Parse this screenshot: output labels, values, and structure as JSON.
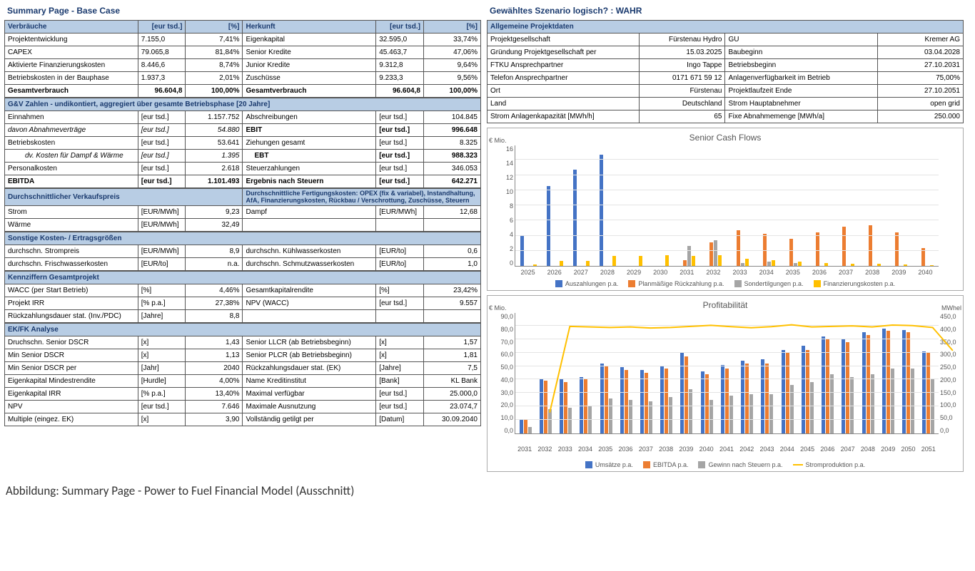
{
  "title_left": "Summary Page - Base Case",
  "title_right": "Gewähltes Szenario logisch? : WAHR",
  "caption": "Abbildung: Summary Page - Power to Fuel Financial Model (Ausschnitt)",
  "colors": {
    "header_bg": "#b8cde4",
    "blue": "#4473c5",
    "orange": "#ec7d31",
    "gray": "#a5a5a5",
    "yellow": "#ffc000"
  },
  "verbrauche": {
    "header": [
      "Verbräuche",
      "[eur tsd.]",
      "[%]",
      "Herkunft",
      "[eur tsd.]",
      "[%]"
    ],
    "rows": [
      [
        "Projektentwicklung",
        "7.155,0",
        "7,41%",
        "Eigenkapital",
        "32.595,0",
        "33,74%"
      ],
      [
        "CAPEX",
        "79.065,8",
        "81,84%",
        "Senior Kredite",
        "45.463,7",
        "47,06%"
      ],
      [
        "Aktivierte Finanzierungskosten",
        "8.446,6",
        "8,74%",
        "Junior Kredite",
        "9.312,8",
        "9,64%"
      ],
      [
        "Betriebskosten in der Bauphase",
        "1.937,3",
        "2,01%",
        "Zuschüsse",
        "9.233,3",
        "9,56%"
      ]
    ],
    "total": [
      "Gesamtverbrauch",
      "96.604,8",
      "100,00%",
      "Gesamtverbrauch",
      "96.604,8",
      "100,00%"
    ]
  },
  "guv": {
    "header": "G&V Zahlen - undikontiert, aggregiert über gesamte Betriebsphase [20 Jahre]",
    "rows": [
      {
        "l": "Einnahmen",
        "u": "[eur tsd.]",
        "v": "1.157.752",
        "r": "Abschreibungen",
        "ru": "[eur tsd.]",
        "rv": "104.845",
        "cls": ""
      },
      {
        "l": "davon Abnahmeverträge",
        "u": "[eur tsd.]",
        "v": "54.880",
        "r": "EBIT",
        "ru": "[eur tsd.]",
        "rv": "996.648",
        "cls": "i",
        "rb": true
      },
      {
        "l": "Betriebskosten",
        "u": "[eur tsd.]",
        "v": "53.641",
        "r": "Ziehungen gesamt",
        "ru": "[eur tsd.]",
        "rv": "8.325",
        "cls": ""
      },
      {
        "l": "dv. Kosten für Dampf & Wärme",
        "u": "[eur tsd.]",
        "v": "1.395",
        "r": "EBT",
        "ru": "[eur tsd.]",
        "rv": "988.323",
        "cls": "i indent2",
        "rb": true,
        "rindent": true
      },
      {
        "l": "Personalkosten",
        "u": "[eur tsd.]",
        "v": "2.618",
        "r": "Steuerzahlungen",
        "ru": "[eur tsd.]",
        "rv": "346.053",
        "cls": ""
      },
      {
        "l": "EBITDA",
        "u": "[eur tsd.]",
        "v": "1.101.493",
        "r": "Ergebnis nach Steuern",
        "ru": "[eur tsd.]",
        "rv": "642.271",
        "cls": "b",
        "rb": true
      }
    ]
  },
  "preis": {
    "header_l": "Durchschnittlicher Verkaufspreis",
    "header_r": "Durchschnittliche Fertigungskosten: OPEX (fix & variabel), Instandhaltung, AfA, Finanzierungskosten, Rückbau / Verschrottung, Zuschüsse, Steuern",
    "rows": [
      [
        "Strom",
        "[EUR/MWh]",
        "9,23",
        "Dampf",
        "[EUR/MWh]",
        "12,68"
      ],
      [
        "Wärme",
        "[EUR/MWh]",
        "32,49",
        "",
        "",
        ""
      ]
    ]
  },
  "sonstige": {
    "header": "Sonstige Kosten- / Ertragsgrößen",
    "rows": [
      [
        "durchschn. Strompreis",
        "[EUR/MWh]",
        "8,9",
        "durchschn. Kühlwasserkosten",
        "[EUR/to]",
        "0,6"
      ],
      [
        "durchschn. Frischwasserkosten",
        "[EUR/to]",
        "n.a.",
        "durchschn. Schmutzwasserkosten",
        "[EUR/to]",
        "1,0"
      ]
    ]
  },
  "kennziffern": {
    "header": "Kennziffern Gesamtprojekt",
    "rows": [
      [
        "WACC (per Start Betrieb)",
        "[%]",
        "4,46%",
        "Gesamtkapitalrendite",
        "[%]",
        "23,42%"
      ],
      [
        "Projekt IRR",
        "[% p.a.]",
        "27,38%",
        "NPV (WACC)",
        "[eur tsd.]",
        "9.557"
      ],
      [
        "Rückzahlungsdauer stat. (Inv./PDC)",
        "[Jahre]",
        "8,8",
        "",
        "",
        ""
      ]
    ]
  },
  "ekfk": {
    "header": "EK/FK Analyse",
    "rows": [
      [
        "Druchschn. Senior DSCR",
        "[x]",
        "1,43",
        "Senior LLCR (ab Betriebsbeginn)",
        "[x]",
        "1,57"
      ],
      [
        "Min Senior  DSCR",
        "[x]",
        "1,13",
        "Senior PLCR (ab Betriebsbeginn)",
        "[x]",
        "1,81"
      ],
      [
        "Min Senior DSCR per",
        "[Jahr]",
        "2040",
        "Rückzahlungsdauer stat. (EK)",
        "[Jahre]",
        "7,5"
      ],
      [
        "Eigenkapital Mindestrendite",
        "[Hurdle]",
        "4,00%",
        "Name Kreditinstitut",
        "[Bank]",
        "KL Bank"
      ],
      [
        "Eigenkapital IRR",
        "[% p.a.]",
        "13,40%",
        "Maximal verfügbar",
        "[eur tsd.]",
        "25.000,0"
      ],
      [
        "NPV",
        "[eur tsd.]",
        "7.646",
        "Maximale Ausnutzung",
        "[eur tsd.]",
        "23.074,7"
      ],
      [
        "Multiple (eingez. EK)",
        "[x]",
        "3,90",
        "Vollständig getilgt per",
        "[Datum]",
        "30.09.2040"
      ]
    ]
  },
  "projektdaten": {
    "header": "Allgemeine Projektdaten",
    "rows": [
      [
        "Projektgesellschaft",
        "Fürstenau Hydro",
        "GU",
        "Kremer AG"
      ],
      [
        "Gründung Projektgesellschaft per",
        "15.03.2025",
        "Baubeginn",
        "03.04.2028"
      ],
      [
        "FTKU Ansprechpartner",
        "Ingo Tappe",
        "Betriebsbeginn",
        "27.10.2031"
      ],
      [
        "Telefon Ansprechpartner",
        "0171 671 59 12",
        "Anlagenverfügbarkeit im Betrieb",
        "75,00%"
      ],
      [
        "Ort",
        "Fürstenau",
        "Projektlaufzeit Ende",
        "27.10.2051"
      ],
      [
        "Land",
        "Deutschland",
        "Strom Hauptabnehmer",
        "open grid"
      ],
      [
        "Strom Anlagenkapazität [MWh/h]",
        "65",
        "Fixe Abnahmemenge [MWh/a]",
        "250.000"
      ]
    ]
  },
  "chart1": {
    "title": "Senior Cash Flows",
    "ylabel": "€ Mio.",
    "ymax": 16,
    "ystep": 2,
    "years": [
      "2025",
      "2026",
      "2027",
      "2028",
      "2029",
      "2030",
      "2031",
      "2032",
      "2033",
      "2034",
      "2035",
      "2036",
      "2037",
      "2038",
      "2039",
      "2040"
    ],
    "series": [
      {
        "name": "Auszahlungen p.a.",
        "color": "#4473c5",
        "data": [
          4.0,
          10.5,
          12.7,
          14.7,
          0,
          0,
          0,
          0,
          0,
          0,
          0,
          0,
          0,
          0,
          0,
          0
        ]
      },
      {
        "name": "Planmäßige Rückzahlung p.a.",
        "color": "#ec7d31",
        "data": [
          0,
          0,
          0,
          0,
          0,
          0,
          0.8,
          3.1,
          4.7,
          4.2,
          3.6,
          4.4,
          5.2,
          5.4,
          4.4,
          2.4
        ]
      },
      {
        "name": "Sondertilgungen p.a.",
        "color": "#a5a5a5",
        "data": [
          0,
          0,
          0,
          0,
          0,
          0,
          2.6,
          3.4,
          0.4,
          0.6,
          0.4,
          0,
          0,
          0,
          0,
          0
        ]
      },
      {
        "name": "Finanzierungskosten p.a.",
        "color": "#ffc000",
        "data": [
          0.2,
          0.7,
          0.7,
          1.3,
          1.3,
          1.4,
          1.3,
          1.4,
          0.9,
          0.8,
          0.6,
          0.4,
          0.3,
          0.3,
          0.2,
          0.1
        ]
      }
    ],
    "height": 170
  },
  "chart2": {
    "title": "Profitabilität",
    "ylabel": "€ Mio.",
    "ylabel2": "MWhel",
    "ymax": 90,
    "ystep": 10,
    "y2max": 450,
    "y2step": 50,
    "years": [
      "2031",
      "2032",
      "2033",
      "2034",
      "2035",
      "2036",
      "2037",
      "2038",
      "2039",
      "2040",
      "2041",
      "2042",
      "2043",
      "2044",
      "2045",
      "2046",
      "2047",
      "2048",
      "2049",
      "2050",
      "2051"
    ],
    "series": [
      {
        "name": "Umsätze p.a.",
        "color": "#4473c5",
        "data": [
          10,
          41,
          40,
          42,
          52,
          49,
          47,
          50,
          60,
          46,
          51,
          54,
          55,
          62,
          65,
          72,
          70,
          75,
          78,
          77,
          61
        ]
      },
      {
        "name": "EBITDA p.a.",
        "color": "#ec7d31",
        "data": [
          10,
          39,
          38,
          41,
          50,
          47,
          45,
          48,
          57,
          44,
          48,
          52,
          52,
          60,
          62,
          70,
          68,
          73,
          76,
          75,
          60
        ]
      },
      {
        "name": "Gewinn nach Steuern p.a.",
        "color": "#a5a5a5",
        "data": [
          5,
          18,
          19,
          20,
          26,
          25,
          24,
          27,
          33,
          25,
          28,
          29,
          29,
          36,
          38,
          44,
          42,
          44,
          48,
          48,
          40
        ]
      }
    ],
    "line": {
      "name": "Stromproduktion p.a.",
      "color": "#ffc000",
      "data": [
        80,
        400,
        398,
        396,
        398,
        394,
        396,
        400,
        404,
        399,
        395,
        399,
        406,
        398,
        400,
        402,
        398,
        405,
        403,
        396,
        310
      ]
    },
    "height": 170
  }
}
